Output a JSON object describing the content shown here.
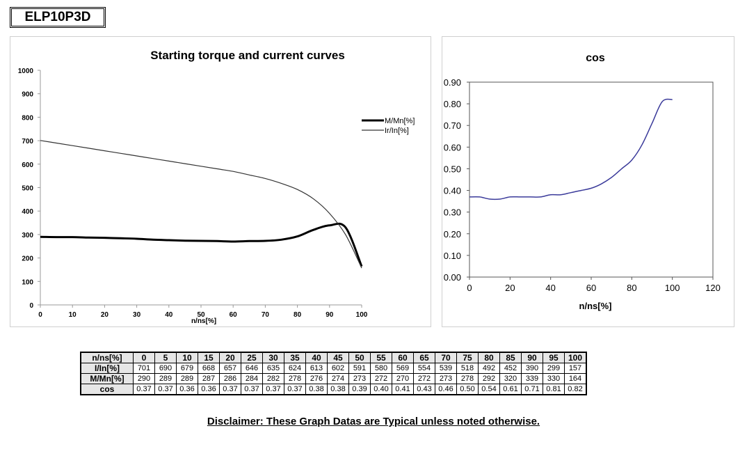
{
  "model": "ELP10P3D",
  "disclaimer": "Disclaimer: These Graph Datas are Typical unless noted otherwise.",
  "chart_data": [
    {
      "type": "line",
      "title": "Starting torque and current curves",
      "xlabel": "n/ns[%]",
      "ylabel": "",
      "xlim": [
        0,
        100
      ],
      "ylim": [
        0,
        1000
      ],
      "xticks": [
        "0",
        "10",
        "20",
        "30",
        "40",
        "50",
        "60",
        "70",
        "80",
        "90",
        "100"
      ],
      "yticks": [
        "0",
        "100",
        "200",
        "300",
        "400",
        "500",
        "600",
        "700",
        "800",
        "900",
        "1000"
      ],
      "grid": false,
      "legend": "right",
      "x": [
        0,
        5,
        10,
        15,
        20,
        25,
        30,
        35,
        40,
        45,
        50,
        55,
        60,
        65,
        70,
        75,
        80,
        85,
        90,
        95,
        100
      ],
      "series": [
        {
          "name": "M/Mn[%]",
          "color": "#000000",
          "values": [
            290,
            289,
            289,
            287,
            286,
            284,
            282,
            278,
            276,
            274,
            273,
            272,
            270,
            272,
            273,
            278,
            292,
            320,
            339,
            330,
            164
          ]
        },
        {
          "name": "Ir/In[%]",
          "color": "#333333",
          "values": [
            701,
            690,
            679,
            668,
            657,
            646,
            635,
            624,
            613,
            602,
            591,
            580,
            569,
            554,
            539,
            518,
            492,
            452,
            390,
            299,
            157
          ]
        }
      ]
    },
    {
      "type": "line",
      "title": "cos",
      "xlabel": "n/ns[%]",
      "ylabel": "",
      "xlim": [
        0,
        120
      ],
      "ylim": [
        0,
        0.9
      ],
      "xticks": [
        "0",
        "20",
        "40",
        "60",
        "80",
        "100",
        "120"
      ],
      "yticks": [
        "0.00",
        "0.10",
        "0.20",
        "0.30",
        "0.40",
        "0.50",
        "0.60",
        "0.70",
        "0.80",
        "0.90"
      ],
      "grid": false,
      "x": [
        0,
        5,
        10,
        15,
        20,
        25,
        30,
        35,
        40,
        45,
        50,
        55,
        60,
        65,
        70,
        75,
        80,
        85,
        90,
        95,
        100
      ],
      "series": [
        {
          "name": "",
          "color": "#3a3a9a",
          "values": [
            0.37,
            0.37,
            0.36,
            0.36,
            0.37,
            0.37,
            0.37,
            0.37,
            0.38,
            0.38,
            0.39,
            0.4,
            0.41,
            0.43,
            0.46,
            0.5,
            0.54,
            0.61,
            0.71,
            0.81,
            0.82
          ]
        }
      ]
    }
  ],
  "table": {
    "headers": [
      "n/ns[%]",
      "0",
      "5",
      "10",
      "15",
      "20",
      "25",
      "30",
      "35",
      "40",
      "45",
      "50",
      "55",
      "60",
      "65",
      "70",
      "75",
      "80",
      "85",
      "90",
      "95",
      "100"
    ],
    "rows": [
      {
        "label": "I/In[%]",
        "values": [
          "701",
          "690",
          "679",
          "668",
          "657",
          "646",
          "635",
          "624",
          "613",
          "602",
          "591",
          "580",
          "569",
          "554",
          "539",
          "518",
          "492",
          "452",
          "390",
          "299",
          "157"
        ]
      },
      {
        "label": "M/Mn[%]",
        "values": [
          "290",
          "289",
          "289",
          "287",
          "286",
          "284",
          "282",
          "278",
          "276",
          "274",
          "273",
          "272",
          "270",
          "272",
          "273",
          "278",
          "292",
          "320",
          "339",
          "330",
          "164"
        ]
      },
      {
        "label": "cos",
        "values": [
          "0.37",
          "0.37",
          "0.36",
          "0.36",
          "0.37",
          "0.37",
          "0.37",
          "0.37",
          "0.38",
          "0.38",
          "0.39",
          "0.40",
          "0.41",
          "0.43",
          "0.46",
          "0.50",
          "0.54",
          "0.61",
          "0.71",
          "0.81",
          "0.82"
        ]
      }
    ]
  }
}
